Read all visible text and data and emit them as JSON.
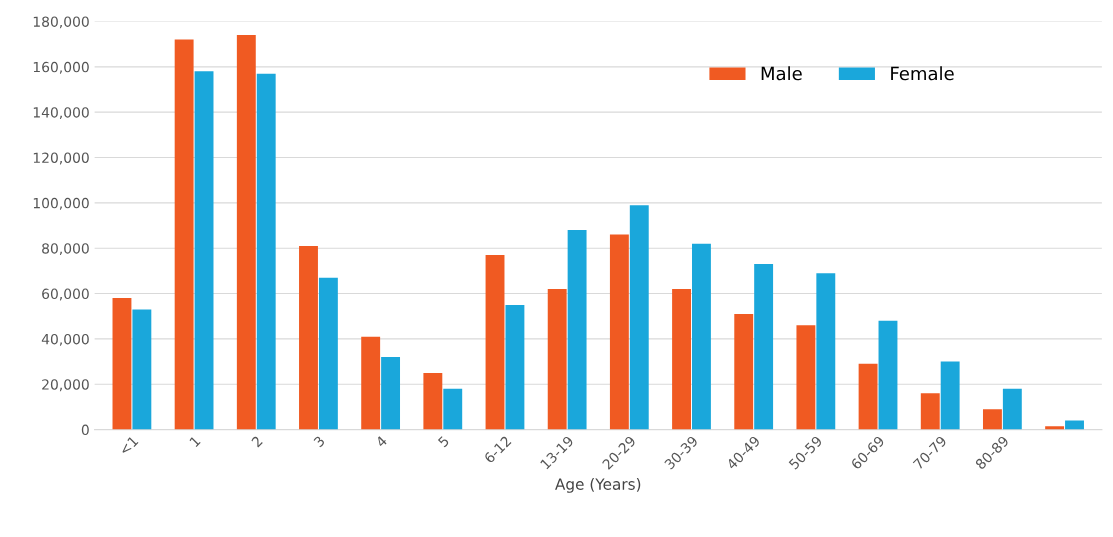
{
  "chart_data": {
    "type": "bar",
    "xlabel": "Age (Years)",
    "categories": [
      "<1",
      "1",
      "2",
      "3",
      "4",
      "5",
      "6-12",
      "13-19",
      "20-29",
      "30-39",
      "40-49",
      "50-59",
      "60-69",
      "70-79",
      "80-89",
      null
    ],
    "series": [
      {
        "name": "Male",
        "color": "#f05a22",
        "values": [
          58000,
          172000,
          174000,
          81000,
          41000,
          25000,
          77000,
          62000,
          86000,
          62000,
          51000,
          46000,
          29000,
          16000,
          9000,
          1500
        ]
      },
      {
        "name": "Female",
        "color": "#1aa7db",
        "values": [
          53000,
          158000,
          157000,
          67000,
          32000,
          18000,
          55000,
          88000,
          99000,
          82000,
          73000,
          69000,
          48000,
          30000,
          18000,
          4000
        ]
      }
    ],
    "ylim": [
      0,
      180000
    ],
    "yticks": [
      {
        "value": 0,
        "label": "0"
      },
      {
        "value": 20000,
        "label": "20,000"
      },
      {
        "value": 40000,
        "label": "40,000"
      },
      {
        "value": 60000,
        "label": "60,000"
      },
      {
        "value": 80000,
        "label": "80,000"
      },
      {
        "value": 100000,
        "label": "100,000"
      },
      {
        "value": 120000,
        "label": "120,000"
      },
      {
        "value": 140000,
        "label": "140,000"
      },
      {
        "value": 160000,
        "label": "160,000"
      },
      {
        "value": 180000,
        "label": "180,000"
      }
    ],
    "grid": "y",
    "legend": "top right"
  }
}
